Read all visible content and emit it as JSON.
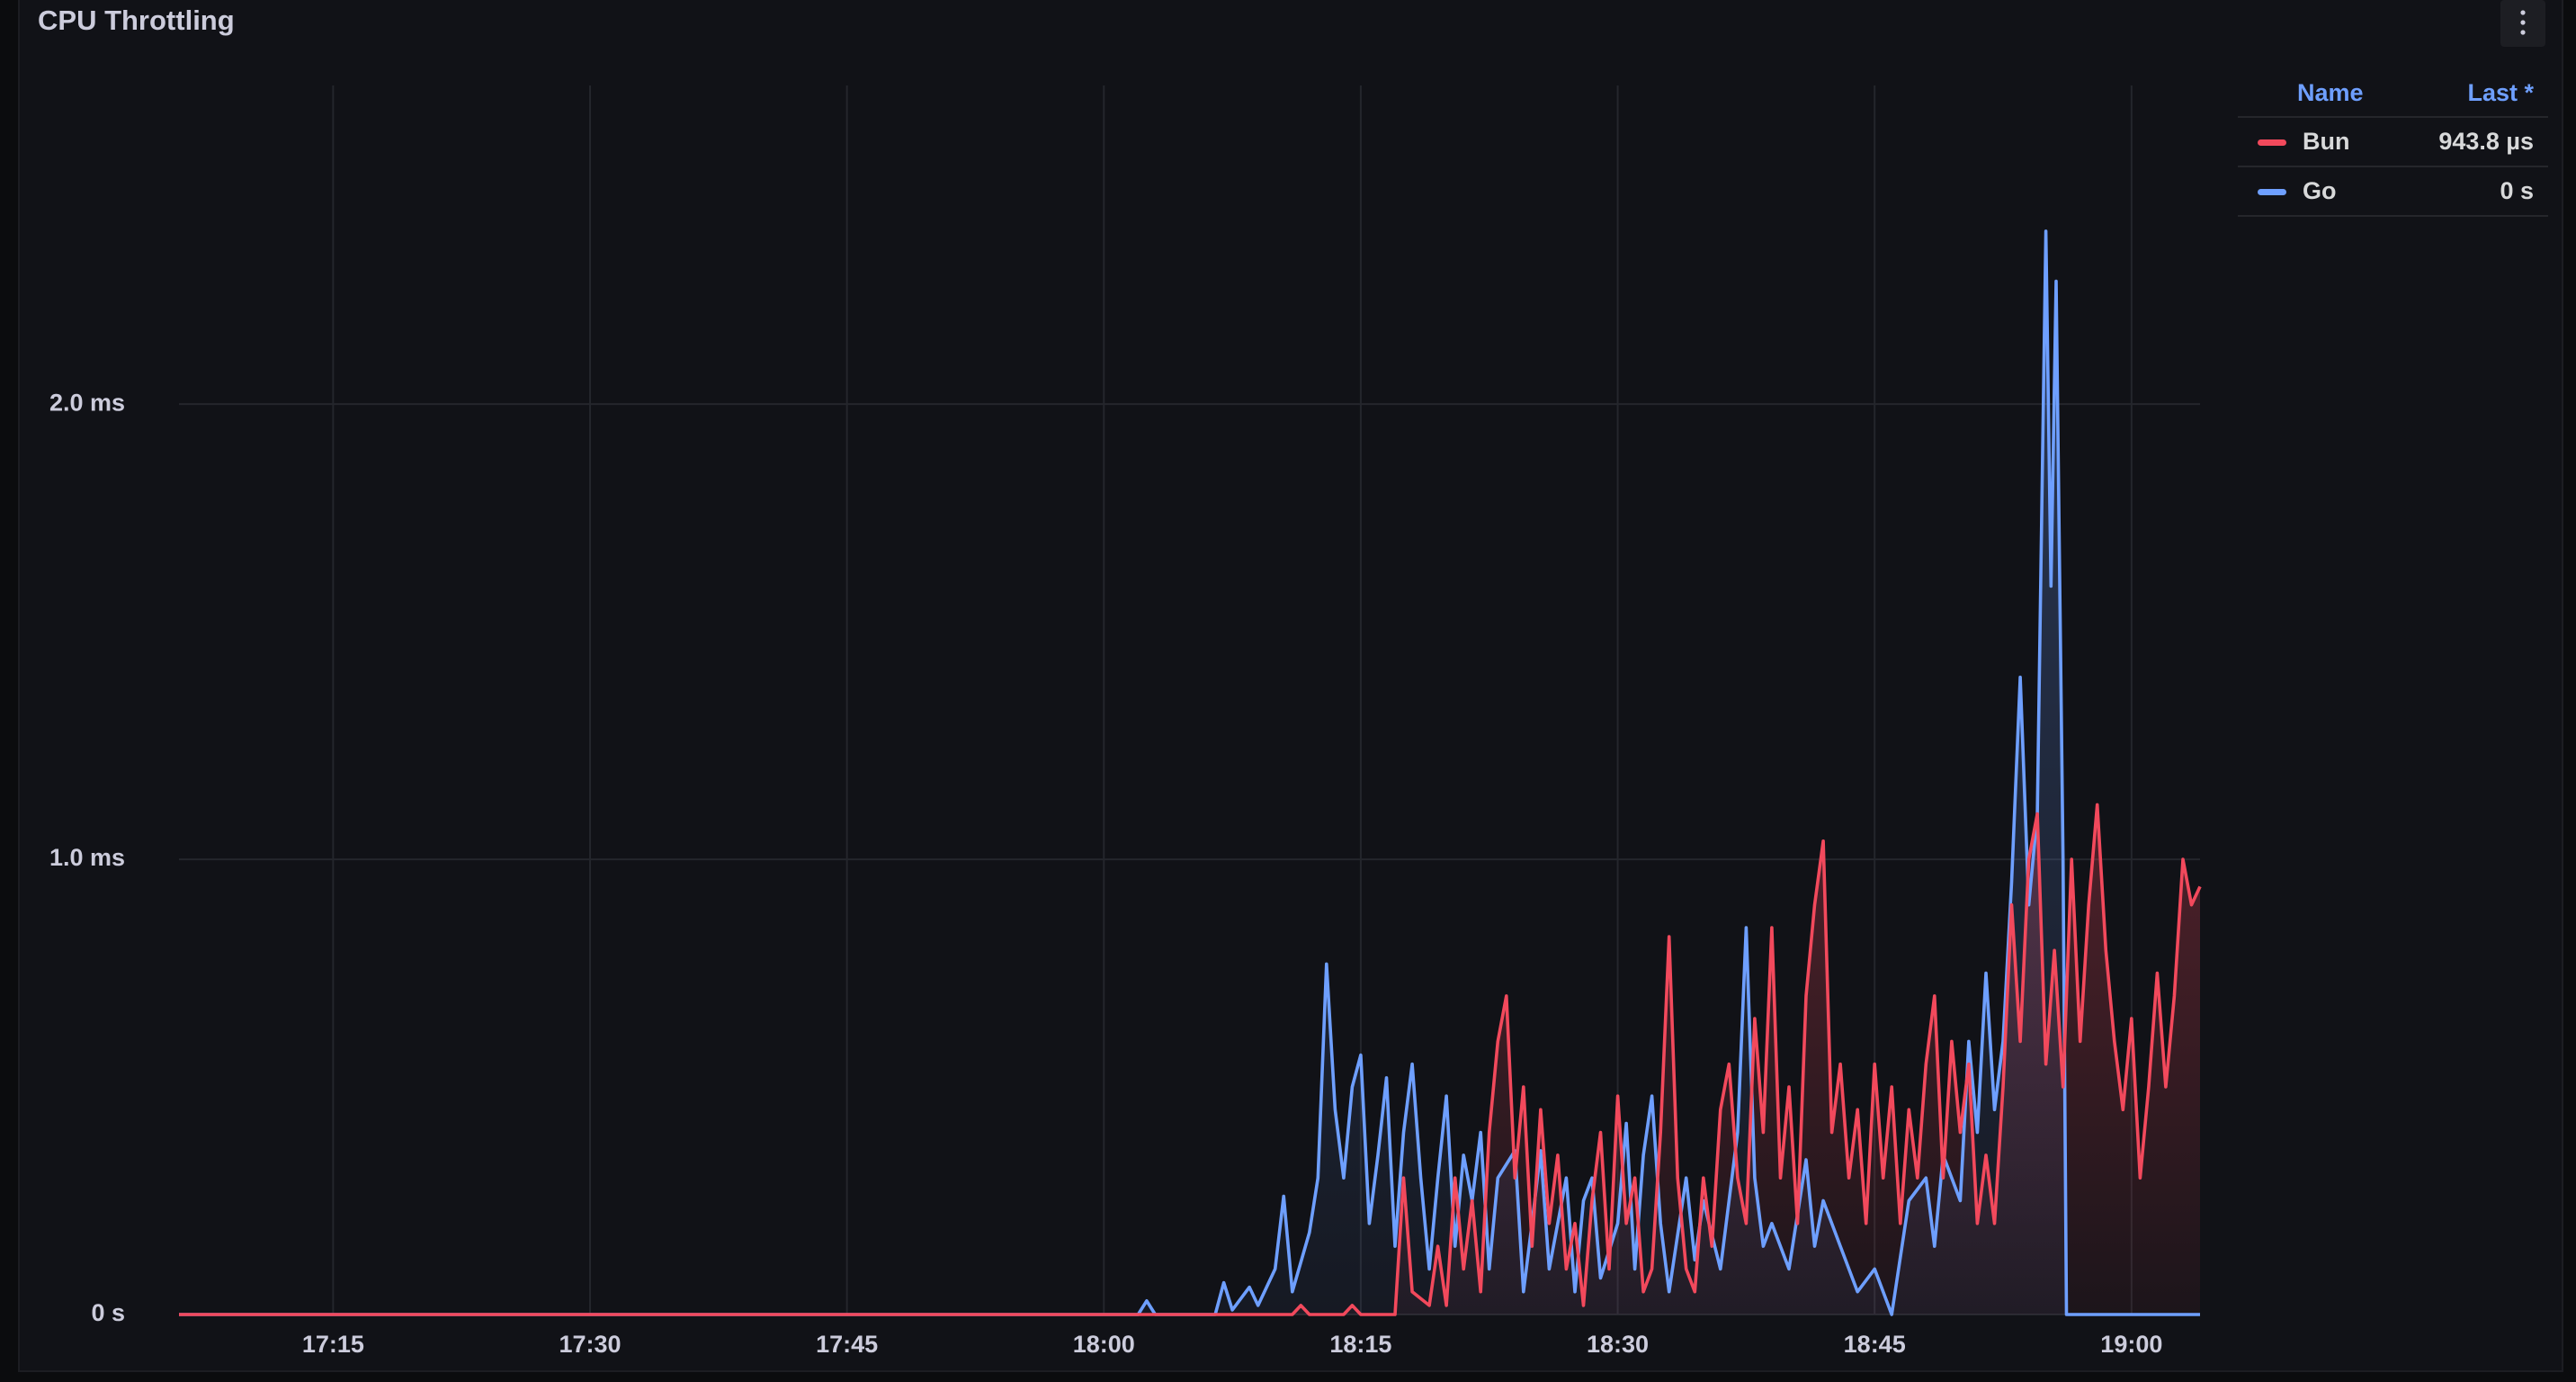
{
  "chart_data": {
    "type": "line",
    "title": "CPU Throttling",
    "xlim": [
      1026,
      1144
    ],
    "xticks": [
      {
        "value": 1035,
        "label": "17:15"
      },
      {
        "value": 1050,
        "label": "17:30"
      },
      {
        "value": 1065,
        "label": "17:45"
      },
      {
        "value": 1080,
        "label": "18:00"
      },
      {
        "value": 1095,
        "label": "18:15"
      },
      {
        "value": 1110,
        "label": "18:30"
      },
      {
        "value": 1125,
        "label": "18:45"
      },
      {
        "value": 1140,
        "label": "19:00"
      }
    ],
    "ylim": [
      0,
      2.7
    ],
    "yticks": [
      {
        "value": 0,
        "label": "0 s"
      },
      {
        "value": 1,
        "label": "1.0 ms"
      },
      {
        "value": 2,
        "label": "2.0 ms"
      }
    ],
    "grid": true,
    "legend": {
      "position": "right",
      "columns": [
        "Name",
        "Last *"
      ]
    },
    "series": [
      {
        "name": "Bun",
        "color": "#f2495c",
        "last": "943.8 µs",
        "x": [
          1026,
          1091,
          1091.5,
          1092,
          1094,
          1094.5,
          1095,
          1097,
          1097.5,
          1098,
          1099,
          1099.5,
          1100,
          1100.5,
          1101,
          1101.5,
          1102,
          1102.5,
          1103,
          1103.5,
          1104,
          1104.5,
          1105,
          1105.5,
          1106,
          1106.5,
          1107,
          1107.5,
          1108,
          1108.5,
          1109,
          1109.5,
          1110,
          1110.5,
          1111,
          1111.5,
          1112,
          1112.5,
          1113,
          1113.5,
          1114,
          1114.5,
          1115,
          1115.5,
          1116,
          1116.5,
          1117,
          1117.5,
          1118,
          1118.5,
          1119,
          1119.5,
          1120,
          1120.5,
          1121,
          1121.5,
          1122,
          1122.5,
          1123,
          1123.5,
          1124,
          1124.5,
          1125,
          1125.5,
          1126,
          1126.5,
          1127,
          1127.5,
          1128,
          1128.5,
          1129,
          1129.5,
          1130,
          1130.5,
          1131,
          1131.5,
          1132,
          1132.5,
          1133,
          1133.5,
          1134,
          1134.5,
          1135,
          1135.5,
          1136,
          1136.5,
          1137,
          1137.5,
          1138,
          1138.5,
          1139,
          1139.5,
          1140,
          1140.5,
          1141,
          1141.5,
          1142,
          1142.5,
          1143,
          1143.5,
          1144
        ],
        "values": [
          0,
          0,
          0.02,
          0,
          0,
          0.02,
          0,
          0,
          0.3,
          0.05,
          0.02,
          0.15,
          0.02,
          0.3,
          0.1,
          0.25,
          0.05,
          0.4,
          0.6,
          0.7,
          0.3,
          0.5,
          0.15,
          0.45,
          0.2,
          0.35,
          0.1,
          0.2,
          0.02,
          0.25,
          0.4,
          0.1,
          0.48,
          0.2,
          0.3,
          0.05,
          0.1,
          0.4,
          0.83,
          0.3,
          0.1,
          0.05,
          0.3,
          0.15,
          0.45,
          0.55,
          0.3,
          0.2,
          0.65,
          0.4,
          0.85,
          0.3,
          0.5,
          0.2,
          0.7,
          0.9,
          1.04,
          0.4,
          0.55,
          0.3,
          0.45,
          0.2,
          0.55,
          0.3,
          0.5,
          0.2,
          0.45,
          0.3,
          0.55,
          0.7,
          0.3,
          0.6,
          0.4,
          0.55,
          0.2,
          0.35,
          0.2,
          0.5,
          0.9,
          0.6,
          1.0,
          1.1,
          0.55,
          0.8,
          0.5,
          1.0,
          0.6,
          0.9,
          1.12,
          0.8,
          0.6,
          0.45,
          0.65,
          0.3,
          0.5,
          0.75,
          0.5,
          0.7,
          1.0,
          0.9,
          0.94
        ]
      },
      {
        "name": "Go",
        "color": "#6e9fff",
        "last": "0 s",
        "x": [
          1026,
          1082,
          1082.5,
          1083,
          1086.5,
          1087,
          1087.5,
          1088.5,
          1089,
          1090,
          1090.5,
          1091,
          1092,
          1092.5,
          1093,
          1093.5,
          1094,
          1094.5,
          1095,
          1095.5,
          1096,
          1096.5,
          1097,
          1097.5,
          1098,
          1098.5,
          1099,
          1099.5,
          1100,
          1100.5,
          1101,
          1101.5,
          1102,
          1102.5,
          1103,
          1104,
          1104.5,
          1105,
          1105.5,
          1106,
          1107,
          1107.5,
          1108,
          1108.5,
          1109,
          1110,
          1110.5,
          1111,
          1111.5,
          1112,
          1112.5,
          1113,
          1114,
          1114.5,
          1115,
          1116,
          1117,
          1117.5,
          1118,
          1118.5,
          1119,
          1120,
          1121,
          1121.5,
          1122,
          1123,
          1124,
          1125,
          1126,
          1127,
          1128,
          1128.5,
          1129,
          1130,
          1130.5,
          1131,
          1131.5,
          1132,
          1132.5,
          1133,
          1133.5,
          1134,
          1134.5,
          1135,
          1135.3,
          1135.6,
          1136,
          1136.2,
          1144
        ],
        "values": [
          0,
          0,
          0.03,
          0,
          0,
          0.07,
          0.01,
          0.06,
          0.02,
          0.1,
          0.26,
          0.05,
          0.18,
          0.3,
          0.77,
          0.45,
          0.3,
          0.5,
          0.57,
          0.2,
          0.35,
          0.52,
          0.15,
          0.4,
          0.55,
          0.3,
          0.1,
          0.3,
          0.48,
          0.15,
          0.35,
          0.25,
          0.4,
          0.1,
          0.3,
          0.36,
          0.05,
          0.2,
          0.36,
          0.1,
          0.3,
          0.05,
          0.25,
          0.3,
          0.08,
          0.2,
          0.42,
          0.1,
          0.35,
          0.48,
          0.2,
          0.05,
          0.3,
          0.12,
          0.25,
          0.1,
          0.4,
          0.85,
          0.3,
          0.15,
          0.2,
          0.1,
          0.34,
          0.15,
          0.25,
          0.15,
          0.05,
          0.1,
          0,
          0.25,
          0.3,
          0.15,
          0.35,
          0.25,
          0.6,
          0.4,
          0.75,
          0.45,
          0.6,
          0.95,
          1.4,
          0.9,
          1.1,
          2.38,
          1.6,
          2.27,
          1.0,
          0,
          0
        ]
      }
    ]
  }
}
